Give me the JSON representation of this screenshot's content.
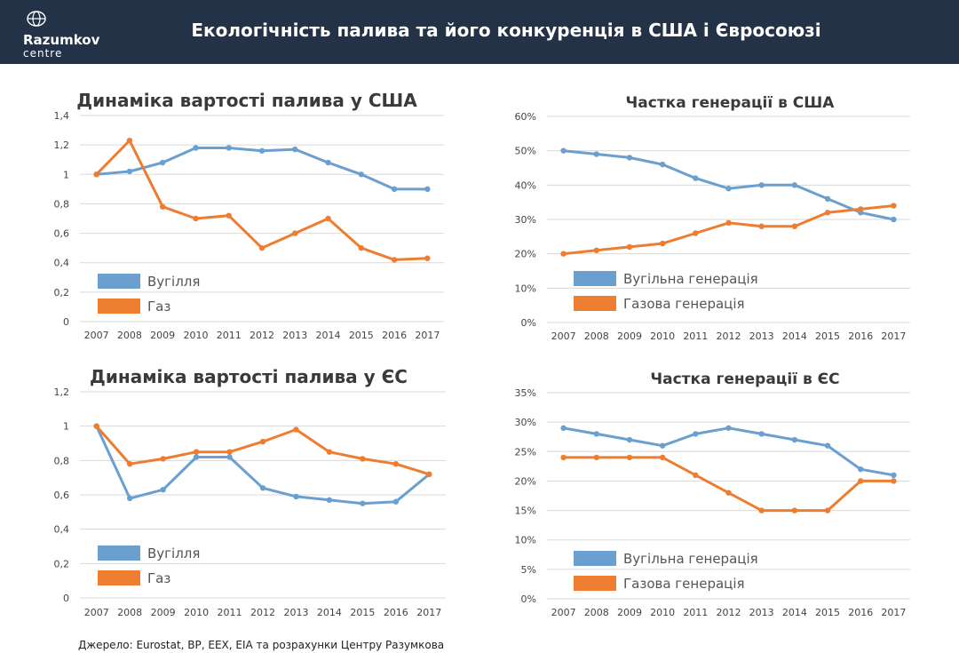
{
  "header": {
    "title": "Екологічність палива та його конкуренція в США і Євросоюзі",
    "logo_name": "Razumkov",
    "logo_sub": "centre"
  },
  "source": "Джерело: Eurostat, BP, EEX, EIA та розрахунки Центру Разумкова",
  "colors": {
    "blue": "#6a9fcf",
    "orange": "#ed7d31",
    "header_bg": "#233247"
  },
  "chart_data": [
    {
      "type": "line",
      "title": "Динаміка вартості палива у США",
      "categories": [
        "2007",
        "2008",
        "2009",
        "2010",
        "2011",
        "2012",
        "2013",
        "2014",
        "2015",
        "2016",
        "2017"
      ],
      "ylim": [
        0,
        1.4
      ],
      "yticks": [
        "0",
        "0,2",
        "0,4",
        "0,6",
        "0,8",
        "1",
        "1,2",
        "1,4"
      ],
      "grid": true,
      "legend_position": "bottom-left",
      "series": [
        {
          "name": "Вугілля",
          "color": "#6a9fcf",
          "values": [
            1.0,
            1.02,
            1.08,
            1.18,
            1.18,
            1.16,
            1.17,
            1.08,
            1.0,
            0.9,
            0.9
          ]
        },
        {
          "name": "Газ",
          "color": "#ed7d31",
          "values": [
            1.0,
            1.23,
            0.78,
            0.7,
            0.72,
            0.5,
            0.6,
            0.7,
            0.5,
            0.42,
            0.43
          ]
        }
      ]
    },
    {
      "type": "line",
      "title": "Частка генерації в США",
      "categories": [
        "2007",
        "2008",
        "2009",
        "2010",
        "2011",
        "2012",
        "2013",
        "2014",
        "2015",
        "2016",
        "2017"
      ],
      "ylim": [
        0,
        60
      ],
      "yticks": [
        "0%",
        "10%",
        "20%",
        "30%",
        "40%",
        "50%",
        "60%"
      ],
      "grid": true,
      "legend_position": "bottom-left",
      "series": [
        {
          "name": "Вугільна генерація",
          "color": "#6a9fcf",
          "values": [
            50,
            49,
            48,
            46,
            42,
            39,
            40,
            40,
            36,
            32,
            30
          ]
        },
        {
          "name": "Газова генерація",
          "color": "#ed7d31",
          "values": [
            20,
            21,
            22,
            23,
            26,
            29,
            28,
            28,
            32,
            33,
            34
          ]
        }
      ]
    },
    {
      "type": "line",
      "title": "Динаміка вартості палива у ЄС",
      "categories": [
        "2007",
        "2008",
        "2009",
        "2010",
        "2011",
        "2012",
        "2013",
        "2014",
        "2015",
        "2016",
        "2017"
      ],
      "ylim": [
        0,
        1.2
      ],
      "yticks": [
        "0",
        "0,2",
        "0,4",
        "0,6",
        "0,8",
        "1",
        "1,2"
      ],
      "grid": true,
      "legend_position": "bottom-left",
      "series": [
        {
          "name": "Вугілля",
          "color": "#6a9fcf",
          "values": [
            1.0,
            0.58,
            0.63,
            0.82,
            0.82,
            0.64,
            0.59,
            0.57,
            0.55,
            0.56,
            0.72
          ]
        },
        {
          "name": "Газ",
          "color": "#ed7d31",
          "values": [
            1.0,
            0.78,
            0.81,
            0.85,
            0.85,
            0.91,
            0.98,
            0.85,
            0.81,
            0.78,
            0.72
          ]
        }
      ]
    },
    {
      "type": "line",
      "title": "Частка генерації в ЄС",
      "categories": [
        "2007",
        "2008",
        "2009",
        "2010",
        "2011",
        "2012",
        "2013",
        "2014",
        "2015",
        "2016",
        "2017"
      ],
      "ylim": [
        0,
        35
      ],
      "yticks": [
        "0%",
        "5%",
        "10%",
        "15%",
        "20%",
        "25%",
        "30%",
        "35%"
      ],
      "grid": true,
      "legend_position": "bottom-left",
      "series": [
        {
          "name": "Вугільна генерація",
          "color": "#6a9fcf",
          "values": [
            29,
            28,
            27,
            26,
            28,
            29,
            28,
            27,
            26,
            22,
            21
          ]
        },
        {
          "name": "Газова генерація",
          "color": "#ed7d31",
          "values": [
            24,
            24,
            24,
            24,
            21,
            18,
            15,
            15,
            15,
            20,
            20
          ]
        }
      ]
    }
  ]
}
